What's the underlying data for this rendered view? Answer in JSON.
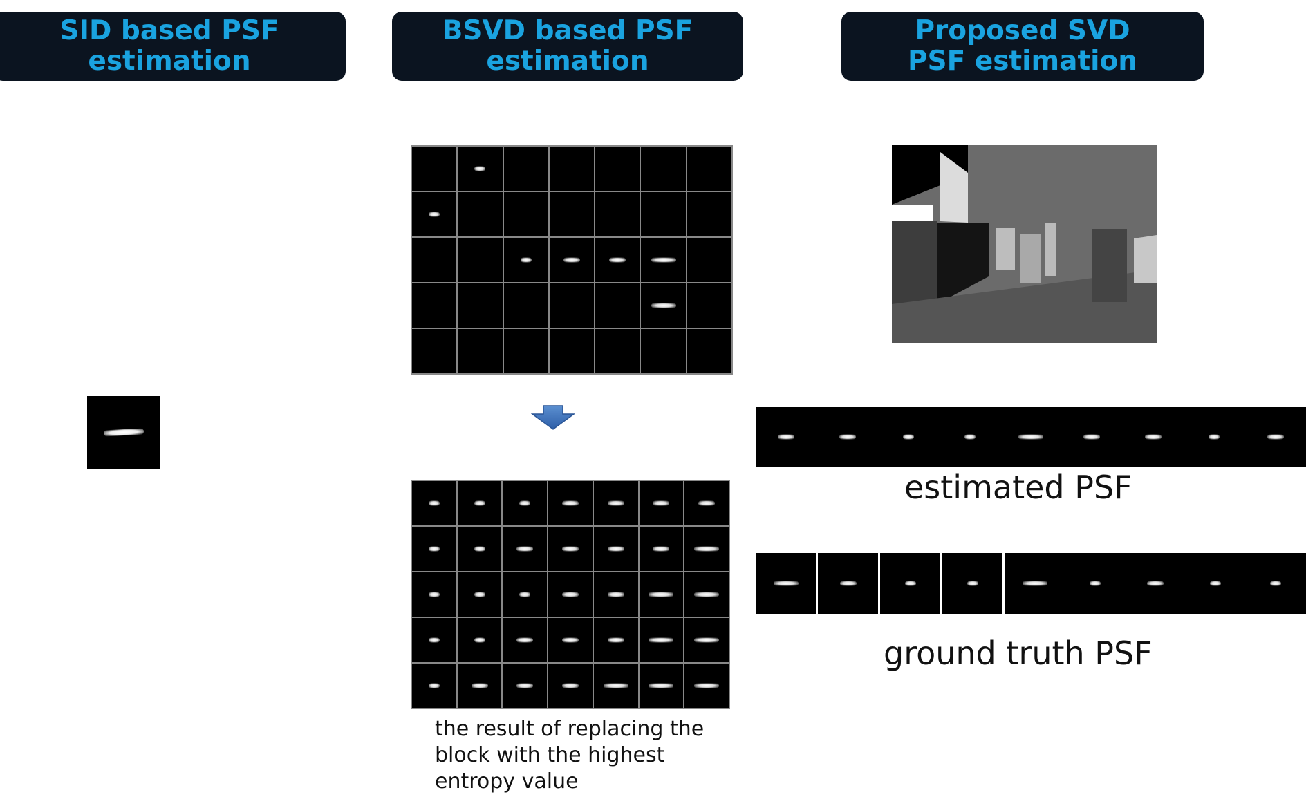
{
  "titles": {
    "sid": "SID based PSF estimation",
    "bsvd_line1": "BSVD based PSF",
    "bsvd_line2": "estimation",
    "proposed_line1": "Proposed SVD",
    "proposed_line2": "PSF estimation"
  },
  "labels": {
    "caption_line1": "the result of replacing the",
    "caption_line2": "block with the highest",
    "caption_line3": "entropy value",
    "estimated_psf": "estimated PSF",
    "ground_truth_psf": "ground truth PSF"
  },
  "colors": {
    "title_bg": "#0b1420",
    "title_text": "#1aa3e0",
    "arrow": "#3b6fb4"
  },
  "icons": {
    "arrow": "down-arrow-icon"
  }
}
